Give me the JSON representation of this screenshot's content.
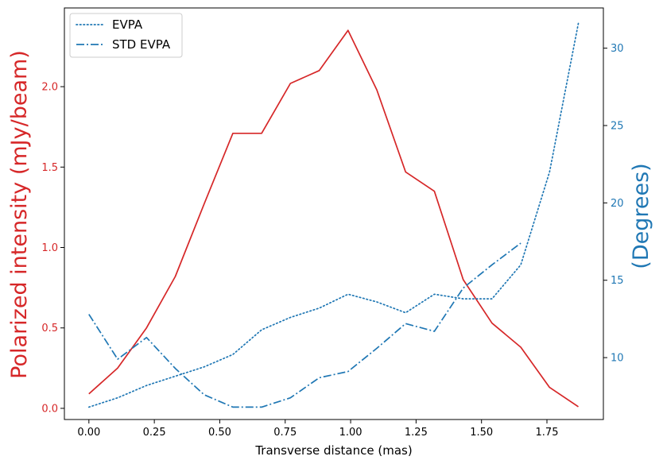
{
  "colors": {
    "left_axis": "#d62728",
    "right_axis": "#1f77b4",
    "axis": "#000000"
  },
  "chart_data": {
    "type": "line",
    "xlabel": "Transverse distance (mas)",
    "ylabel_left": "Polarized intensity (mJy/beam)",
    "ylabel_right": "(Degrees)",
    "xlim": [
      -0.0936,
      1.9656
    ],
    "ylim_left": [
      -0.0694,
      2.4894
    ],
    "ylim_right": [
      6.0,
      32.6
    ],
    "x_ticks": [
      "0.00",
      "0.25",
      "0.50",
      "0.75",
      "1.00",
      "1.25",
      "1.50",
      "1.75"
    ],
    "x_tick_values": [
      0.0,
      0.25,
      0.5,
      0.75,
      1.0,
      1.25,
      1.5,
      1.75
    ],
    "y_left_ticks": [
      "0.0",
      "0.5",
      "1.0",
      "1.5",
      "2.0"
    ],
    "y_left_tick_values": [
      0.0,
      0.5,
      1.0,
      1.5,
      2.0
    ],
    "y_right_ticks": [
      "10",
      "15",
      "20",
      "25",
      "30"
    ],
    "y_right_tick_values": [
      10,
      15,
      20,
      25,
      30
    ],
    "legend_position": "top-left",
    "series": [
      {
        "axis": "left",
        "style": "solid",
        "color": "#d62728",
        "x": [
          0.0,
          0.11,
          0.22,
          0.33,
          0.44,
          0.55,
          0.66,
          0.77,
          0.88,
          0.99,
          1.1,
          1.21,
          1.32,
          1.43,
          1.54,
          1.65,
          1.76,
          1.87
        ],
        "values": [
          0.09,
          0.25,
          0.5,
          0.82,
          1.27,
          1.71,
          1.71,
          2.02,
          2.1,
          2.35,
          1.98,
          1.47,
          1.35,
          0.8,
          0.53,
          0.38,
          0.13,
          0.01
        ]
      },
      {
        "name": "EVPA",
        "axis": "right",
        "style": "dotted",
        "color": "#1f77b4",
        "x": [
          0.0,
          0.11,
          0.22,
          0.33,
          0.44,
          0.55,
          0.66,
          0.77,
          0.88,
          0.99,
          1.1,
          1.21,
          1.32,
          1.43,
          1.54,
          1.65,
          1.76,
          1.87
        ],
        "values": [
          6.8,
          7.4,
          8.2,
          8.8,
          9.4,
          10.2,
          11.8,
          12.6,
          13.2,
          14.1,
          13.6,
          12.9,
          14.1,
          13.8,
          13.8,
          16.0,
          22.0,
          31.6
        ]
      },
      {
        "name": "STD EVPA",
        "axis": "right",
        "style": "dashdot",
        "color": "#1f77b4",
        "x": [
          0.0,
          0.11,
          0.22,
          0.33,
          0.44,
          0.55,
          0.66,
          0.77,
          0.88,
          0.99,
          1.1,
          1.21,
          1.32,
          1.43,
          1.54,
          1.65
        ],
        "values": [
          12.8,
          9.9,
          11.3,
          9.3,
          7.6,
          6.8,
          6.8,
          7.4,
          8.7,
          9.1,
          10.6,
          12.2,
          11.7,
          14.5,
          16.0,
          17.4
        ]
      }
    ]
  }
}
